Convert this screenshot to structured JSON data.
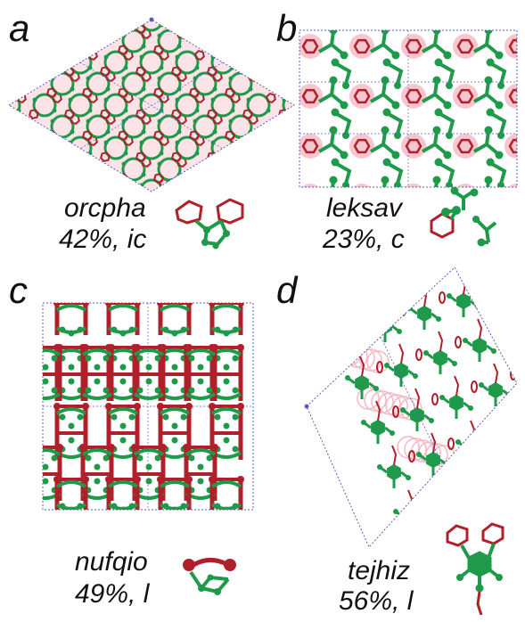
{
  "colors": {
    "green": "#1e9a4a",
    "red": "#b0202a",
    "halo": "#f5b8c2",
    "cell": "#5a5acc"
  },
  "panels": [
    {
      "letter": "a",
      "name": "orcpha",
      "stat": "42%, ic"
    },
    {
      "letter": "b",
      "name": "leksav",
      "stat": "23%, c"
    },
    {
      "letter": "c",
      "name": "nufqio",
      "stat": "49%, l"
    },
    {
      "letter": "d",
      "name": "tejhiz",
      "stat": "56%, l"
    }
  ]
}
